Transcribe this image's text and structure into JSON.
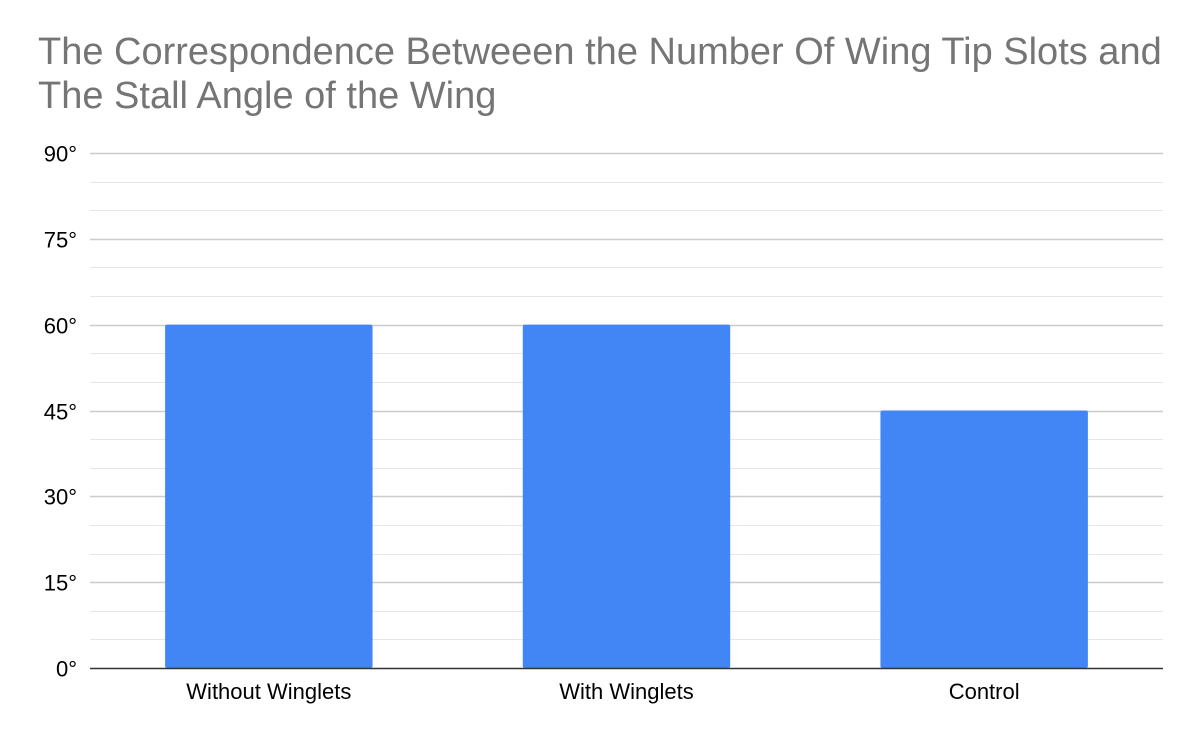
{
  "chart_data": {
    "type": "bar",
    "title": "The Correspondence Betweeen the Number Of Wing Tip Slots and The Stall Angle of the Wing",
    "categories": [
      "Without Winglets",
      "With Winglets",
      "Control"
    ],
    "values": [
      60,
      60,
      45
    ],
    "ylim": [
      0,
      90
    ],
    "yticks": [
      0,
      15,
      30,
      45,
      60,
      75,
      90
    ],
    "ytick_labels": [
      "0°",
      "15°",
      "30°",
      "45°",
      "60°",
      "75°",
      "90°"
    ],
    "minor_grid_step": 5,
    "grid": true,
    "legend": "none",
    "bar_color": "#4285F4",
    "gridline_color": "#cccccc",
    "minor_gridline_color": "#e6e6e6",
    "axis_color": "#333333"
  }
}
